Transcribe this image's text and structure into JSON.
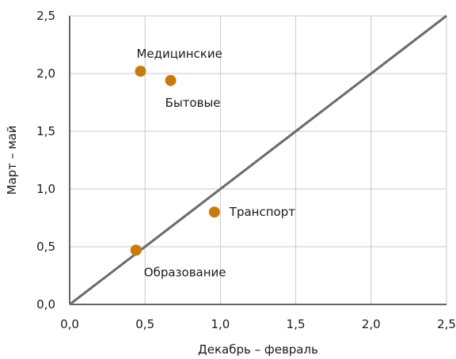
{
  "chart_data": {
    "type": "scatter",
    "title": "",
    "xlabel": "Декабрь – февраль",
    "ylabel": "Март – май",
    "xlim": [
      0,
      2.5
    ],
    "ylim": [
      0,
      2.5
    ],
    "x_ticks": [
      "0,0",
      "0,5",
      "1,0",
      "1,5",
      "2,0",
      "2,5"
    ],
    "y_ticks": [
      "0,0",
      "0,5",
      "1,0",
      "1,5",
      "2,0",
      "2,5"
    ],
    "grid": true,
    "reference_line": {
      "from": [
        0,
        0
      ],
      "to": [
        2.5,
        2.5
      ]
    },
    "points": [
      {
        "label": "Медицинские",
        "x": 0.47,
        "y": 2.02
      },
      {
        "label": "Бытовые",
        "x": 0.67,
        "y": 1.94
      },
      {
        "label": "Транспорт",
        "x": 0.96,
        "y": 0.8
      },
      {
        "label": "Образование",
        "x": 0.44,
        "y": 0.47
      }
    ],
    "colors": {
      "point": "#c87a0f",
      "line": "#6b6b6b",
      "grid": "#c8c8c8",
      "axis": "#333333"
    }
  }
}
